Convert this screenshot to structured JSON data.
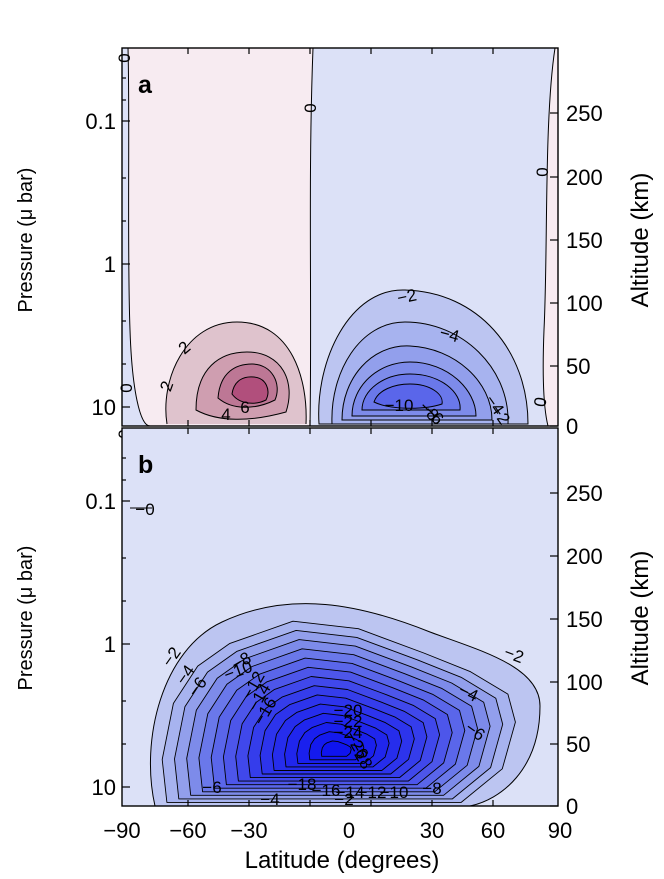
{
  "figure": {
    "x_axis_label": "Latitude (degrees)",
    "x_ticks": [
      "−90",
      "−60",
      "−30",
      "0",
      "30",
      "60",
      "90"
    ]
  },
  "chart_data": [
    {
      "type": "contour",
      "panel_label": "a",
      "xlabel": "Latitude (degrees)",
      "ylabel_left": "Pressure (μ bar)",
      "ylabel_right": "Altitude (km)",
      "xlim": [
        -90,
        90
      ],
      "y_left_ticks": [
        "0.1",
        "1",
        "10"
      ],
      "y_right_ticks": [
        "250",
        "200",
        "150",
        "100",
        "50",
        "0"
      ],
      "contour_interval": 2,
      "positive_cell": {
        "center_lat": -38,
        "center_pressure_ubar": 8,
        "max": 6
      },
      "negative_cell": {
        "center_lat": 20,
        "center_pressure_ubar": 8,
        "min": -10
      },
      "zero_line_lat": -10,
      "contour_labels": [
        "0",
        "0",
        "0",
        "0",
        "2",
        "2",
        "4",
        "6",
        "−2",
        "−4",
        "−10",
        "−8",
        "−6",
        "−2",
        "−4",
        "0",
        "0"
      ]
    },
    {
      "type": "contour",
      "panel_label": "b",
      "xlabel": "Latitude (degrees)",
      "ylabel_left": "Pressure (μ bar)",
      "ylabel_right": "Altitude (km)",
      "xlim": [
        -90,
        90
      ],
      "y_left_ticks": [
        "0.1",
        "1",
        "10"
      ],
      "y_right_ticks": [
        "250",
        "200",
        "150",
        "100",
        "50",
        "0"
      ],
      "contour_interval": 2,
      "negative_cell": {
        "center_lat": -5,
        "center_pressure_ubar": 5,
        "min": -30
      },
      "contour_labels": [
        "−0",
        "−2",
        "−4",
        "−6",
        "−8",
        "−10",
        "−12",
        "−14",
        "−16",
        "−20",
        "−22",
        "−24",
        "−26",
        "−28",
        "−2",
        "−4",
        "−6",
        "−6",
        "−4",
        "−18",
        "−16",
        "−14",
        "−12",
        "−10",
        "−8",
        "−2"
      ]
    }
  ],
  "colors": {
    "positive_levels": [
      "#f7ebf1",
      "#dfc3cd",
      "#cf9eb0",
      "#bd7795",
      "#b14f7c"
    ],
    "negative_levels": [
      "#dce1f7",
      "#bcc5f1",
      "#a7b3ef",
      "#929fec",
      "#7d8bea",
      "#6a78ea",
      "#5a66ea",
      "#4d56ea",
      "#4048eb",
      "#353deb",
      "#2d34ec",
      "#262dec",
      "#2026ed",
      "#1a20ee",
      "#141aee",
      "#0f14ef"
    ]
  }
}
